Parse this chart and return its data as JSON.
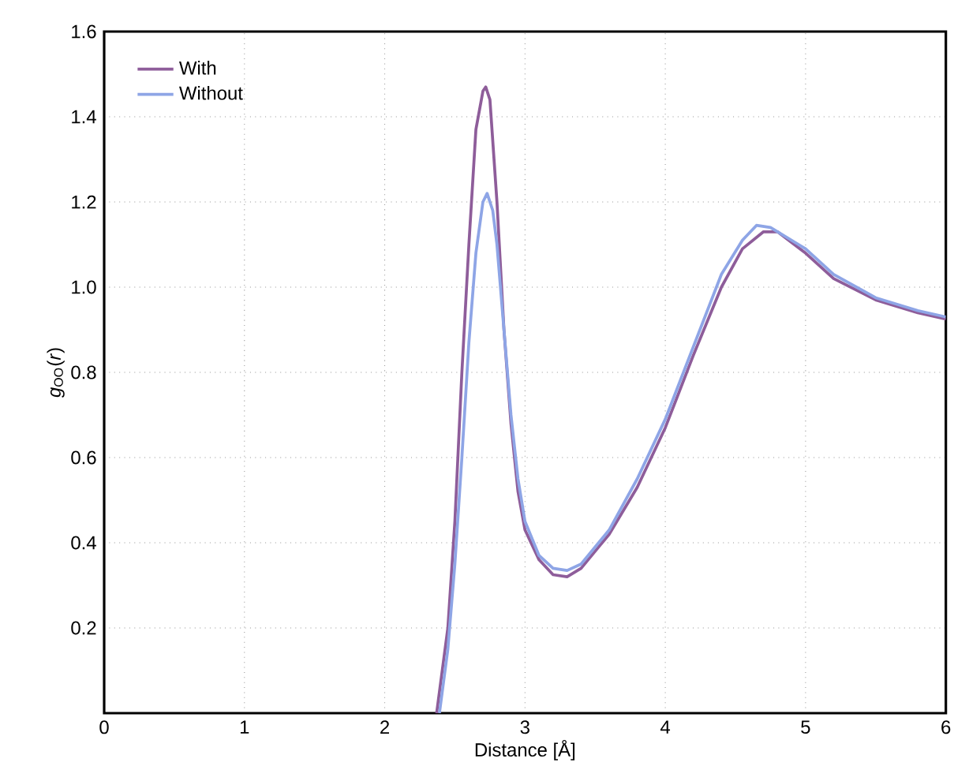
{
  "chart_data": {
    "type": "line",
    "xlabel": "Distance [Å]",
    "ylabel": "*g*$_{OO}$(*r*)",
    "xlim": [
      0,
      6
    ],
    "xticks": [
      0,
      1,
      2,
      3,
      4,
      5,
      6
    ],
    "ylim": [
      0,
      1.6
    ],
    "yticks": [
      0.2,
      0.4,
      0.6,
      0.8,
      {
        "value": 1.0,
        "label": "1.0"
      },
      1.2,
      1.4,
      1.6
    ],
    "grid": true,
    "legend": "top left",
    "marker": "none",
    "line_style": "solid",
    "series": [
      {
        "name": "With",
        "color": "#8e5d9a",
        "x": [
          2.37,
          2.45,
          2.5,
          2.55,
          2.6,
          2.65,
          2.7,
          2.72,
          2.75,
          2.8,
          2.85,
          2.9,
          2.95,
          3.0,
          3.1,
          3.2,
          3.3,
          3.4,
          3.6,
          3.8,
          4.0,
          4.2,
          4.4,
          4.55,
          4.7,
          4.8,
          5.0,
          5.2,
          5.5,
          5.8,
          6.0
        ],
        "values": [
          0,
          0.2,
          0.45,
          0.8,
          1.1,
          1.37,
          1.46,
          1.47,
          1.44,
          1.2,
          0.9,
          0.68,
          0.52,
          0.43,
          0.36,
          0.325,
          0.32,
          0.34,
          0.42,
          0.53,
          0.67,
          0.84,
          1.0,
          1.09,
          1.13,
          1.13,
          1.08,
          1.02,
          0.97,
          0.94,
          0.925
        ]
      },
      {
        "name": "Without",
        "color": "#8ea5e6",
        "x": [
          2.39,
          2.45,
          2.5,
          2.55,
          2.6,
          2.65,
          2.7,
          2.73,
          2.77,
          2.8,
          2.85,
          2.9,
          2.95,
          3.0,
          3.1,
          3.2,
          3.3,
          3.4,
          3.6,
          3.8,
          4.0,
          4.2,
          4.4,
          4.55,
          4.65,
          4.75,
          5.0,
          5.2,
          5.5,
          5.8,
          6.0
        ],
        "values": [
          0,
          0.15,
          0.35,
          0.6,
          0.87,
          1.08,
          1.2,
          1.22,
          1.18,
          1.1,
          0.9,
          0.7,
          0.55,
          0.45,
          0.37,
          0.34,
          0.335,
          0.35,
          0.43,
          0.55,
          0.69,
          0.86,
          1.03,
          1.11,
          1.145,
          1.14,
          1.09,
          1.03,
          0.975,
          0.945,
          0.93
        ]
      }
    ]
  }
}
